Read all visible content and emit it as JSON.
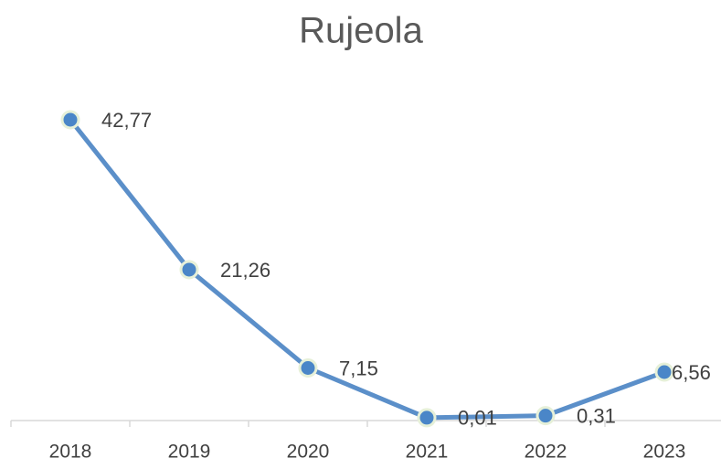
{
  "chart_data": {
    "type": "line",
    "title": "Rujeola",
    "categories": [
      "2018",
      "2019",
      "2020",
      "2021",
      "2022",
      "2023"
    ],
    "values": [
      42.77,
      21.26,
      7.15,
      0.01,
      0.31,
      6.56
    ],
    "value_labels": [
      "42,77",
      "21,26",
      "7,15",
      "0,01",
      "0,31",
      "6,56"
    ],
    "color": "#5b8fc9"
  }
}
